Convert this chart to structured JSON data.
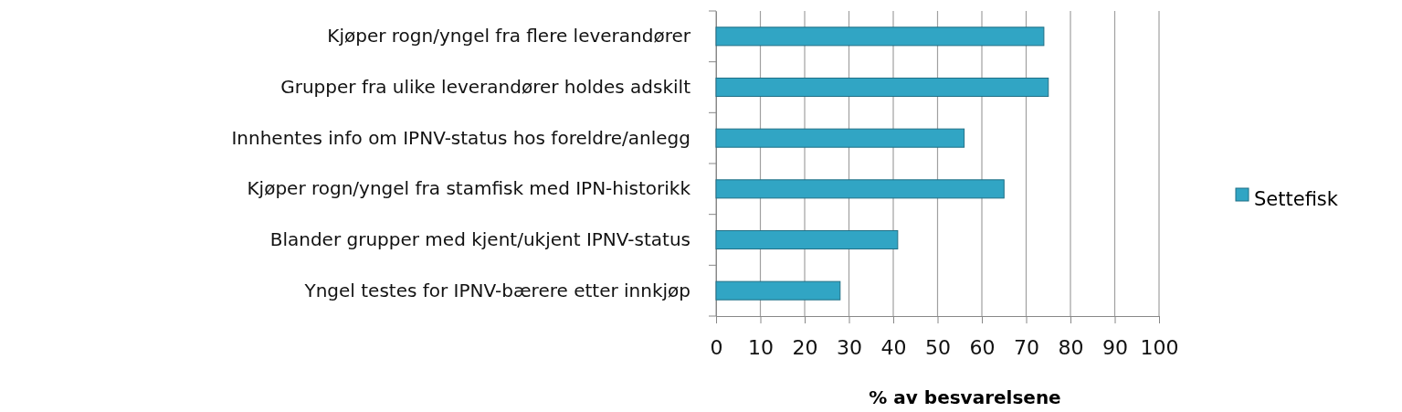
{
  "chart_data": {
    "type": "bar",
    "orientation": "horizontal",
    "xlabel": "% av besvarelsene",
    "categories": [
      "Kjøper rogn/yngel fra flere leverandører",
      "Grupper fra ulike leverandører holdes adskilt",
      "Innhentes info om IPNV-status hos foreldre/anlegg",
      "Kjøper rogn/yngel fra stamfisk med IPN-historikk",
      "Blander grupper med kjent/ukjent IPNV-status",
      "Yngel testes for IPNV-bærere etter innkjøp"
    ],
    "series": [
      {
        "name": "Settefisk",
        "color": "#31a5c4",
        "values": [
          74,
          75,
          56,
          65,
          41,
          28
        ]
      }
    ],
    "xlim": [
      0,
      100
    ],
    "xticks": [
      0,
      10,
      20,
      30,
      40,
      50,
      60,
      70,
      80,
      90,
      100
    ],
    "grid": "x",
    "legend": "right"
  }
}
